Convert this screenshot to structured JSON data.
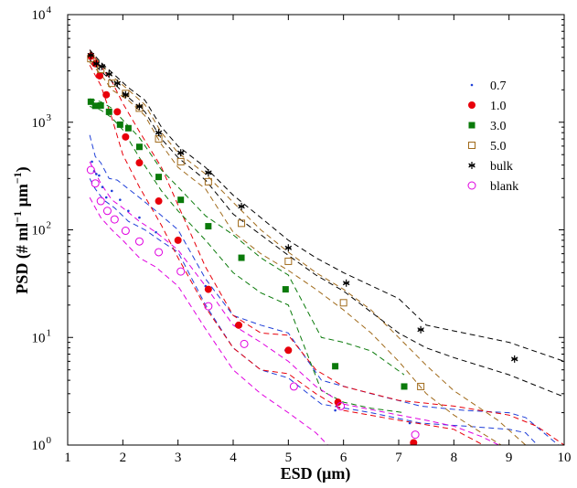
{
  "chart_data": {
    "type": "scatter",
    "xlabel": "ESD (μm)",
    "ylabel_parts": [
      "PSD (# ml",
      "−1",
      " μm",
      "−1",
      ")"
    ],
    "x_range": [
      1,
      10
    ],
    "y_range": [
      1,
      10000
    ],
    "y_scale": "log",
    "x_ticks": [
      1,
      2,
      3,
      4,
      5,
      6,
      7,
      8,
      9,
      10
    ],
    "y_ticks": [
      {
        "value": 1,
        "base": "10",
        "exp": "0"
      },
      {
        "value": 10,
        "base": "10",
        "exp": "1"
      },
      {
        "value": 100,
        "base": "10",
        "exp": "2"
      },
      {
        "value": 1000,
        "base": "10",
        "exp": "3"
      },
      {
        "value": 10000,
        "base": "10",
        "exp": "4"
      }
    ],
    "grid": false,
    "legend_position": "top-right",
    "series": [
      {
        "name": "0.7",
        "color": "#1f3fd8",
        "marker": "dot",
        "points": [
          [
            1.44,
            430
          ],
          [
            1.48,
            350
          ],
          [
            1.52,
            330
          ],
          [
            1.57,
            320
          ],
          [
            1.63,
            250
          ],
          [
            1.7,
            200
          ],
          [
            1.8,
            230
          ],
          [
            1.95,
            190
          ],
          [
            2.1,
            150
          ],
          [
            2.3,
            130
          ],
          [
            2.6,
            95
          ],
          [
            3.0,
            82
          ],
          [
            3.5,
            30
          ],
          [
            4.05,
            13
          ],
          [
            4.95,
            7.6
          ],
          [
            5.85,
            2.1
          ],
          [
            7.2,
            1.6
          ]
        ],
        "band_upper": [
          [
            1.4,
            760
          ],
          [
            1.5,
            480
          ],
          [
            1.6,
            420
          ],
          [
            1.75,
            300
          ],
          [
            1.9,
            290
          ],
          [
            2.1,
            240
          ],
          [
            2.3,
            200
          ],
          [
            2.6,
            150
          ],
          [
            3.0,
            100
          ],
          [
            3.5,
            35
          ],
          [
            4.0,
            16
          ],
          [
            4.5,
            13
          ],
          [
            5.0,
            11
          ],
          [
            5.6,
            4
          ],
          [
            6.5,
            3
          ],
          [
            7.4,
            2.3
          ],
          [
            8.2,
            2.1
          ],
          [
            9.0,
            2.0
          ],
          [
            9.3,
            1.8
          ],
          [
            10,
            0.9
          ]
        ],
        "band_lower": [
          [
            1.4,
            300
          ],
          [
            1.5,
            240
          ],
          [
            1.65,
            190
          ],
          [
            1.85,
            160
          ],
          [
            2.1,
            120
          ],
          [
            2.4,
            100
          ],
          [
            2.7,
            78
          ],
          [
            3.0,
            62
          ],
          [
            3.5,
            20
          ],
          [
            4.0,
            8
          ],
          [
            4.5,
            5
          ],
          [
            5.0,
            4.2
          ],
          [
            5.6,
            2.4
          ],
          [
            6.5,
            2.0
          ],
          [
            7.4,
            1.6
          ],
          [
            8.2,
            1.5
          ],
          [
            9.0,
            1.4
          ],
          [
            9.3,
            1.3
          ],
          [
            9.6,
            0.9
          ]
        ]
      },
      {
        "name": "1.0",
        "color": "#e8000b",
        "marker": "circle-filled",
        "points": [
          [
            1.42,
            4100
          ],
          [
            1.5,
            3500
          ],
          [
            1.58,
            2700
          ],
          [
            1.7,
            1800
          ],
          [
            1.9,
            1250
          ],
          [
            2.05,
            730
          ],
          [
            2.3,
            420
          ],
          [
            2.65,
            185
          ],
          [
            3.0,
            80
          ],
          [
            3.55,
            28
          ],
          [
            4.1,
            13
          ],
          [
            5.0,
            7.6
          ],
          [
            5.9,
            2.5
          ],
          [
            7.27,
            1.05
          ]
        ],
        "band_upper": [
          [
            1.4,
            4700
          ],
          [
            1.6,
            3300
          ],
          [
            1.8,
            2400
          ],
          [
            2.0,
            1500
          ],
          [
            2.3,
            820
          ],
          [
            2.7,
            380
          ],
          [
            3.0,
            170
          ],
          [
            3.5,
            45
          ],
          [
            4.0,
            16
          ],
          [
            4.5,
            11
          ],
          [
            5.0,
            10.5
          ],
          [
            5.5,
            5
          ],
          [
            6.0,
            3.5
          ],
          [
            7.0,
            2.6
          ],
          [
            8.0,
            2.3
          ],
          [
            9.0,
            1.9
          ],
          [
            9.5,
            1.5
          ],
          [
            10,
            1.0
          ]
        ],
        "band_lower": [
          [
            1.4,
            3400
          ],
          [
            1.6,
            2200
          ],
          [
            1.8,
            1100
          ],
          [
            2.0,
            500
          ],
          [
            2.3,
            250
          ],
          [
            2.7,
            110
          ],
          [
            3.0,
            55
          ],
          [
            3.5,
            19
          ],
          [
            4.0,
            8
          ],
          [
            4.5,
            5
          ],
          [
            5.0,
            4.6
          ],
          [
            5.5,
            3
          ],
          [
            6.0,
            2.1
          ],
          [
            7.0,
            1.7
          ],
          [
            8.0,
            1.4
          ],
          [
            8.7,
            0.9
          ]
        ]
      },
      {
        "name": "3.0",
        "color": "#0a7a0a",
        "marker": "square-filled",
        "points": [
          [
            1.42,
            1550
          ],
          [
            1.5,
            1420
          ],
          [
            1.6,
            1430
          ],
          [
            1.75,
            1250
          ],
          [
            1.95,
            950
          ],
          [
            2.1,
            880
          ],
          [
            2.3,
            590
          ],
          [
            2.65,
            310
          ],
          [
            3.05,
            190
          ],
          [
            3.55,
            108
          ],
          [
            4.15,
            55
          ],
          [
            4.95,
            28
          ],
          [
            5.85,
            5.4
          ],
          [
            7.1,
            3.5
          ]
        ],
        "band_upper": [
          [
            1.4,
            1650
          ],
          [
            1.6,
            1550
          ],
          [
            1.8,
            1350
          ],
          [
            2.0,
            1050
          ],
          [
            2.3,
            720
          ],
          [
            2.7,
            360
          ],
          [
            3.0,
            250
          ],
          [
            3.5,
            135
          ],
          [
            4.0,
            90
          ],
          [
            4.5,
            55
          ],
          [
            5.0,
            38
          ],
          [
            5.6,
            10
          ],
          [
            6.0,
            9
          ],
          [
            6.5,
            7.5
          ],
          [
            7.1,
            4.5
          ]
        ],
        "band_lower": [
          [
            1.4,
            1400
          ],
          [
            1.6,
            1300
          ],
          [
            1.8,
            1100
          ],
          [
            2.0,
            850
          ],
          [
            2.3,
            470
          ],
          [
            2.7,
            230
          ],
          [
            3.0,
            150
          ],
          [
            3.5,
            80
          ],
          [
            4.0,
            40
          ],
          [
            4.5,
            26
          ],
          [
            5.0,
            20
          ],
          [
            5.6,
            3.2
          ],
          [
            6.0,
            2.5
          ],
          [
            6.5,
            2.2
          ],
          [
            7.1,
            2.0
          ]
        ]
      },
      {
        "name": "5.0",
        "color": "#a06a1a",
        "marker": "square-open",
        "points": [
          [
            1.42,
            3900
          ],
          [
            1.6,
            3100
          ],
          [
            1.8,
            2300
          ],
          [
            2.05,
            1850
          ],
          [
            2.3,
            1350
          ],
          [
            2.65,
            700
          ],
          [
            3.05,
            430
          ],
          [
            3.55,
            280
          ],
          [
            4.15,
            115
          ],
          [
            5.0,
            51
          ],
          [
            6.0,
            21
          ],
          [
            7.4,
            3.5
          ]
        ],
        "band_upper": [
          [
            1.4,
            4500
          ],
          [
            1.6,
            3500
          ],
          [
            1.8,
            2700
          ],
          [
            2.1,
            2000
          ],
          [
            2.4,
            1450
          ],
          [
            2.7,
            800
          ],
          [
            3.0,
            520
          ],
          [
            3.5,
            330
          ],
          [
            4.0,
            180
          ],
          [
            4.5,
            100
          ],
          [
            5.0,
            62
          ],
          [
            5.5,
            40
          ],
          [
            6.0,
            28
          ],
          [
            6.5,
            18
          ],
          [
            7.0,
            10
          ],
          [
            7.5,
            5.5
          ],
          [
            8.0,
            3.2
          ],
          [
            8.8,
            1.7
          ],
          [
            9.4,
            0.9
          ]
        ],
        "band_lower": [
          [
            1.4,
            3600
          ],
          [
            1.6,
            2800
          ],
          [
            1.8,
            2000
          ],
          [
            2.1,
            1600
          ],
          [
            2.4,
            1150
          ],
          [
            2.7,
            620
          ],
          [
            3.0,
            380
          ],
          [
            3.5,
            240
          ],
          [
            4.0,
            95
          ],
          [
            4.5,
            60
          ],
          [
            5.0,
            42
          ],
          [
            5.5,
            28
          ],
          [
            6.0,
            18
          ],
          [
            6.5,
            11
          ],
          [
            7.0,
            6
          ],
          [
            7.5,
            3.0
          ],
          [
            8.0,
            1.9
          ],
          [
            8.5,
            1.3
          ],
          [
            9.0,
            0.9
          ]
        ]
      },
      {
        "name": "bulk",
        "color": "#000000",
        "marker": "asterisk",
        "points": [
          [
            1.42,
            4200
          ],
          [
            1.52,
            3500
          ],
          [
            1.62,
            3300
          ],
          [
            1.75,
            2800
          ],
          [
            1.9,
            2300
          ],
          [
            2.05,
            1800
          ],
          [
            2.3,
            1400
          ],
          [
            2.65,
            800
          ],
          [
            3.05,
            520
          ],
          [
            3.55,
            340
          ],
          [
            4.15,
            165
          ],
          [
            5.0,
            68
          ],
          [
            6.05,
            32
          ],
          [
            7.4,
            11.8
          ],
          [
            9.1,
            6.3
          ]
        ],
        "band_upper": [
          [
            1.4,
            4700
          ],
          [
            1.6,
            3600
          ],
          [
            1.8,
            2900
          ],
          [
            2.1,
            2100
          ],
          [
            2.4,
            1600
          ],
          [
            2.7,
            900
          ],
          [
            3.0,
            600
          ],
          [
            3.5,
            380
          ],
          [
            4.0,
            210
          ],
          [
            4.5,
            130
          ],
          [
            5.0,
            80
          ],
          [
            5.5,
            55
          ],
          [
            6.0,
            40
          ],
          [
            7.0,
            23
          ],
          [
            7.5,
            13
          ],
          [
            8.0,
            11.5
          ],
          [
            9.0,
            9
          ],
          [
            10,
            6
          ]
        ],
        "band_lower": [
          [
            1.4,
            3800
          ],
          [
            1.6,
            3000
          ],
          [
            1.8,
            2400
          ],
          [
            2.1,
            1700
          ],
          [
            2.4,
            1250
          ],
          [
            2.7,
            700
          ],
          [
            3.0,
            470
          ],
          [
            3.5,
            290
          ],
          [
            4.0,
            140
          ],
          [
            4.5,
            90
          ],
          [
            5.0,
            58
          ],
          [
            5.5,
            38
          ],
          [
            6.0,
            27
          ],
          [
            7.0,
            11
          ],
          [
            7.5,
            8
          ],
          [
            8.0,
            6.5
          ],
          [
            9.0,
            4.5
          ],
          [
            10,
            2.8
          ]
        ]
      },
      {
        "name": "blank",
        "color": "#e000e0",
        "marker": "circle-open",
        "points": [
          [
            1.42,
            360
          ],
          [
            1.5,
            270
          ],
          [
            1.6,
            185
          ],
          [
            1.72,
            150
          ],
          [
            1.85,
            125
          ],
          [
            2.05,
            98
          ],
          [
            2.3,
            78
          ],
          [
            2.65,
            62
          ],
          [
            3.05,
            41
          ],
          [
            3.55,
            19.5
          ],
          [
            4.2,
            8.7
          ],
          [
            5.1,
            3.5
          ],
          [
            5.95,
            2.3
          ],
          [
            7.3,
            1.25
          ]
        ],
        "band_upper": [
          [
            1.4,
            430
          ],
          [
            1.6,
            270
          ],
          [
            1.8,
            190
          ],
          [
            2.0,
            160
          ],
          [
            2.3,
            120
          ],
          [
            2.6,
            95
          ],
          [
            3.0,
            65
          ],
          [
            3.5,
            30
          ],
          [
            4.0,
            13
          ],
          [
            4.5,
            9
          ],
          [
            5.0,
            6
          ],
          [
            5.5,
            3.5
          ],
          [
            6.0,
            2.4
          ],
          [
            7.0,
            1.9
          ],
          [
            7.5,
            1.7
          ],
          [
            8.0,
            1.5
          ],
          [
            8.5,
            1.2
          ],
          [
            9.0,
            0.9
          ]
        ],
        "band_lower": [
          [
            1.4,
            200
          ],
          [
            1.6,
            130
          ],
          [
            1.8,
            100
          ],
          [
            2.0,
            80
          ],
          [
            2.3,
            55
          ],
          [
            2.6,
            45
          ],
          [
            3.0,
            30
          ],
          [
            3.5,
            12
          ],
          [
            4.0,
            5
          ],
          [
            4.5,
            3
          ],
          [
            5.0,
            2
          ],
          [
            5.5,
            1.3
          ],
          [
            5.8,
            0.9
          ]
        ]
      }
    ]
  }
}
